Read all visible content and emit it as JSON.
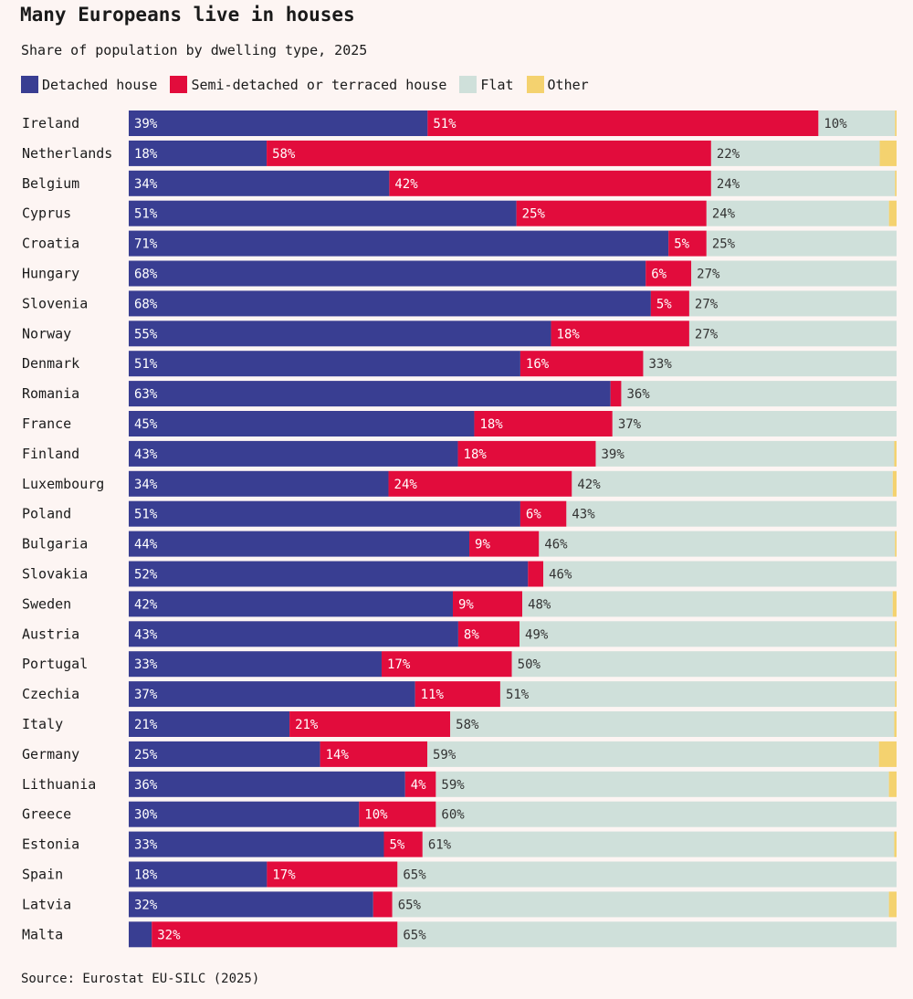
{
  "title": "Many Europeans live in houses",
  "subtitle": "Share of population by dwelling type, 2025",
  "source": "Source: Eurostat EU-SILC (2025)",
  "legend": [
    {
      "label": "Detached house",
      "color": "#393e92"
    },
    {
      "label": "Semi-detached or terraced house",
      "color": "#e20c3c"
    },
    {
      "label": "Flat",
      "color": "#cfe0da"
    },
    {
      "label": "Other",
      "color": "#f4d26f"
    }
  ],
  "chart_data": {
    "type": "bar",
    "orientation": "horizontal",
    "stacked": true,
    "categories": [
      "Ireland",
      "Netherlands",
      "Belgium",
      "Cyprus",
      "Croatia",
      "Hungary",
      "Slovenia",
      "Norway",
      "Denmark",
      "Romania",
      "France",
      "Finland",
      "Luxembourg",
      "Poland",
      "Bulgaria",
      "Slovakia",
      "Sweden",
      "Austria",
      "Portugal",
      "Czechia",
      "Italy",
      "Germany",
      "Lithuania",
      "Greece",
      "Estonia",
      "Spain",
      "Latvia",
      "Malta"
    ],
    "series": [
      {
        "name": "Detached house",
        "color": "#393e92",
        "values": [
          39,
          18,
          34,
          51,
          71,
          68,
          68,
          55,
          51,
          63,
          45,
          43,
          34,
          51,
          44,
          52,
          42,
          43,
          33,
          37,
          21,
          25,
          36,
          30,
          33,
          18,
          32,
          3
        ],
        "labels": [
          "39%",
          "18%",
          "34%",
          "51%",
          "71%",
          "68%",
          "68%",
          "55%",
          "51%",
          "63%",
          "45%",
          "43%",
          "34%",
          "51%",
          "44%",
          "52%",
          "42%",
          "43%",
          "33%",
          "37%",
          "21%",
          "25%",
          "36%",
          "30%",
          "33%",
          "18%",
          "32%",
          ""
        ]
      },
      {
        "name": "Semi-detached or terraced house",
        "color": "#e20c3c",
        "values": [
          51,
          58,
          42,
          25,
          5,
          6,
          5,
          18,
          16,
          1.4,
          18,
          18,
          24,
          6,
          9,
          2,
          9,
          8,
          17,
          11,
          21,
          14,
          4,
          10,
          5,
          17,
          2.5,
          32
        ],
        "labels": [
          "51%",
          "58%",
          "42%",
          "25%",
          "5%",
          "6%",
          "5%",
          "18%",
          "16%",
          "",
          "18%",
          "18%",
          "24%",
          "6%",
          "9%",
          "",
          "9%",
          "8%",
          "17%",
          "11%",
          "21%",
          "14%",
          "4%",
          "10%",
          "5%",
          "17%",
          "",
          "32%"
        ]
      },
      {
        "name": "Flat",
        "color": "#cfe0da",
        "values": [
          10,
          22,
          24,
          24,
          25,
          27,
          27,
          27,
          33,
          36,
          37,
          39,
          42,
          43,
          46,
          46,
          48,
          49,
          50,
          51,
          58,
          59,
          59,
          60,
          61,
          65,
          65,
          65
        ],
        "labels": [
          "10%",
          "22%",
          "24%",
          "24%",
          "25%",
          "27%",
          "27%",
          "27%",
          "33%",
          "36%",
          "37%",
          "39%",
          "42%",
          "43%",
          "46%",
          "46%",
          "48%",
          "49%",
          "50%",
          "51%",
          "58%",
          "59%",
          "59%",
          "60%",
          "61%",
          "65%",
          "65%",
          "65%"
        ]
      },
      {
        "name": "Other",
        "color": "#f4d26f",
        "values": [
          0.2,
          2.2,
          0.2,
          1,
          0,
          0,
          0,
          0,
          0,
          0,
          0,
          0.3,
          0.5,
          0,
          0.2,
          0,
          0.5,
          0.2,
          0.2,
          0.2,
          0.3,
          2.3,
          1,
          0,
          0.3,
          0,
          1,
          0
        ],
        "labels": [
          "",
          "",
          "",
          "",
          "",
          "",
          "",
          "",
          "",
          "",
          "",
          "",
          "",
          "",
          "",
          "",
          "",
          "",
          "",
          "",
          "",
          "",
          "",
          "",
          "",
          "",
          "",
          ""
        ]
      }
    ]
  }
}
